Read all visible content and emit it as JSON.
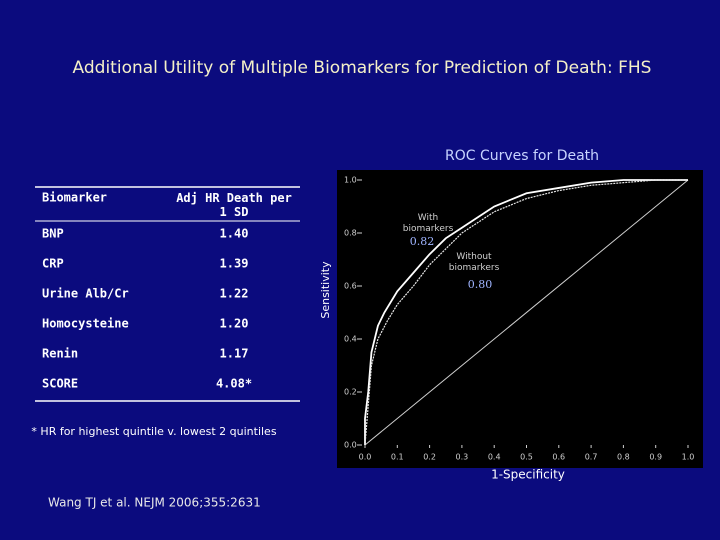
{
  "title": "Additional Utility of Multiple Biomarkers for Prediction of Death: FHS",
  "table": {
    "headers": [
      "Biomarker",
      "Adj HR Death per 1 SD"
    ],
    "rows": [
      [
        "BNP",
        "1.40"
      ],
      [
        "CRP",
        "1.39"
      ],
      [
        "Urine Alb/Cr",
        "1.22"
      ],
      [
        "Homocysteine",
        "1.20"
      ],
      [
        "Renin",
        "1.17"
      ],
      [
        "SCORE",
        "4.08*"
      ]
    ]
  },
  "footnote": "* HR for highest quintile v. lowest 2 quintiles",
  "citation": "Wang TJ et al. NEJM 2006;355:2631",
  "chart_data": {
    "type": "line",
    "title": "ROC Curves for Death",
    "x_label": "1-Specificity",
    "y_label": "Sensitivity",
    "xlim": [
      0,
      1
    ],
    "ylim": [
      0,
      1
    ],
    "xticks": [
      {
        "value": 0,
        "label": "0.0"
      },
      {
        "value": 0.1,
        "label": "0.1"
      },
      {
        "value": 0.2,
        "label": "0.2"
      },
      {
        "value": 0.3,
        "label": "0.3"
      },
      {
        "value": 0.4,
        "label": "0.4"
      },
      {
        "value": 0.5,
        "label": "0.5"
      },
      {
        "value": 0.6,
        "label": "0.6"
      },
      {
        "value": 0.7,
        "label": "0.7"
      },
      {
        "value": 0.8,
        "label": "0.8"
      },
      {
        "value": 0.9,
        "label": "0.9"
      },
      {
        "value": 1,
        "label": "1.0"
      }
    ],
    "yticks": [
      {
        "value": 0,
        "label": "0.0"
      },
      {
        "value": 0.2,
        "label": "0.2"
      },
      {
        "value": 0.4,
        "label": "0.4"
      },
      {
        "value": 0.6,
        "label": "0.6"
      },
      {
        "value": 0.8,
        "label": "0.8"
      },
      {
        "value": 1,
        "label": "1.0"
      }
    ],
    "series": [
      {
        "name": "With biomarkers",
        "color": "#ffffff",
        "x": [
          0,
          0,
          0.01,
          0.02,
          0.04,
          0.06,
          0.1,
          0.15,
          0.2,
          0.25,
          0.3,
          0.35,
          0.4,
          0.5,
          0.6,
          0.7,
          0.8,
          1
        ],
        "values": [
          0,
          0.1,
          0.2,
          0.35,
          0.45,
          0.5,
          0.58,
          0.65,
          0.72,
          0.78,
          0.82,
          0.86,
          0.9,
          0.95,
          0.97,
          0.99,
          1,
          1
        ]
      },
      {
        "name": "Without biomarkers",
        "color": "#e8e8e8",
        "x": [
          0,
          0.01,
          0.02,
          0.04,
          0.07,
          0.1,
          0.15,
          0.2,
          0.25,
          0.3,
          0.35,
          0.4,
          0.5,
          0.6,
          0.7,
          0.8,
          0.9,
          1
        ],
        "values": [
          0,
          0.15,
          0.3,
          0.4,
          0.47,
          0.53,
          0.6,
          0.68,
          0.74,
          0.8,
          0.84,
          0.88,
          0.93,
          0.96,
          0.98,
          0.99,
          1,
          1
        ]
      }
    ],
    "annotations": [
      "0.82",
      "0.80"
    ]
  }
}
